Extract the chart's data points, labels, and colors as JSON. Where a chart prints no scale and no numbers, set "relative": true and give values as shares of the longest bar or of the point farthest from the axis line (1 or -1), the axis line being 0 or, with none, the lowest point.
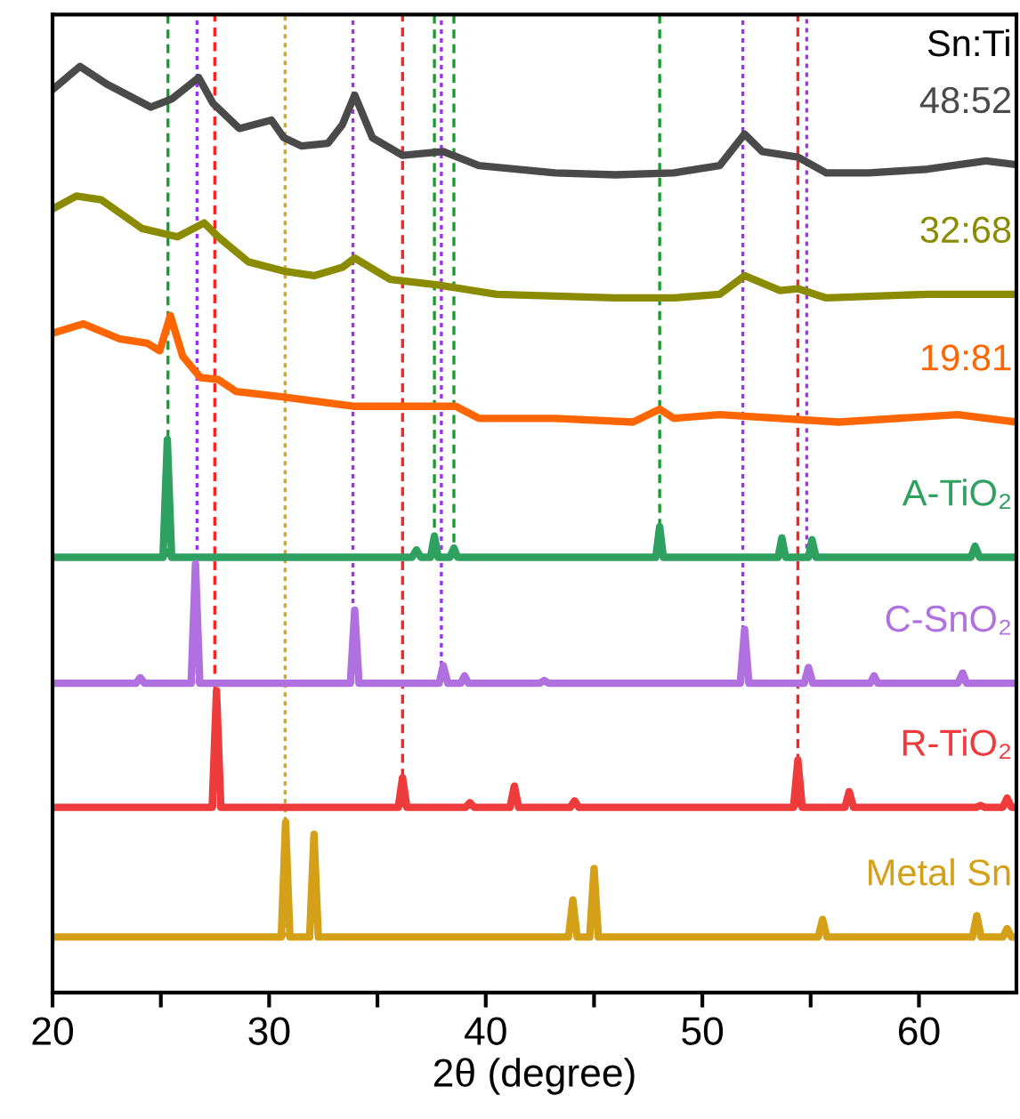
{
  "chart_data": {
    "type": "line",
    "relative": true,
    "xlabel": "2θ (degree)",
    "annotations": [
      "Sn:Ti"
    ],
    "xlim": [
      20,
      64.5
    ],
    "xticks": [
      20,
      {
        "value": 25,
        "label": null
      },
      30,
      {
        "value": 35,
        "label": null
      },
      40,
      {
        "value": 45,
        "label": null
      },
      50,
      {
        "value": 55,
        "label": null
      },
      60
    ],
    "tick_labels": "x",
    "grid": false,
    "legend": false,
    "line_style": "solid",
    "marker": "none",
    "series": [
      {
        "name": "48:52",
        "color": "#4a4a4a",
        "x": [
          20.0,
          21.27,
          22.5,
          24.54,
          25.52,
          26.75,
          27.41,
          28.63,
          30.11,
          30.68,
          31.5,
          32.72,
          33.38,
          33.95,
          34.77,
          36.16,
          38.04,
          39.68,
          43.2,
          45.98,
          48.68,
          50.8,
          51.95,
          52.77,
          54.41,
          55.72,
          57.68,
          60.38,
          63.09,
          64.48
        ],
        "values": [
          0.975,
          1.0,
          0.981,
          0.956,
          0.965,
          0.988,
          0.96,
          0.933,
          0.942,
          0.923,
          0.914,
          0.917,
          0.937,
          0.969,
          0.923,
          0.904,
          0.908,
          0.893,
          0.885,
          0.883,
          0.885,
          0.893,
          0.927,
          0.908,
          0.902,
          0.885,
          0.885,
          0.889,
          0.898,
          0.894
        ]
      },
      {
        "name": "32:68",
        "color": "#8b8b00",
        "x": [
          20.0,
          21.1,
          22.25,
          24.13,
          25.77,
          27.0,
          27.65,
          29.04,
          30.68,
          32.07,
          33.38,
          33.95,
          35.59,
          37.8,
          40.5,
          45.98,
          48.68,
          50.8,
          51.95,
          53.59,
          54.41,
          55.72,
          60.38,
          64.48
        ],
        "values": [
          0.846,
          0.86,
          0.856,
          0.825,
          0.816,
          0.831,
          0.816,
          0.789,
          0.779,
          0.774,
          0.783,
          0.793,
          0.77,
          0.764,
          0.754,
          0.75,
          0.75,
          0.754,
          0.774,
          0.758,
          0.76,
          0.75,
          0.754,
          0.754
        ]
      },
      {
        "name": "19:81",
        "color": "#ff6600",
        "x": [
          20.0,
          21.43,
          23.07,
          24.38,
          24.95,
          25.44,
          26.01,
          26.83,
          27.65,
          28.47,
          30.68,
          33.95,
          35.02,
          38.62,
          39.68,
          43.2,
          46.8,
          48.03,
          48.68,
          50.8,
          56.29,
          61.78,
          64.48
        ],
        "values": [
          0.712,
          0.722,
          0.706,
          0.701,
          0.693,
          0.731,
          0.687,
          0.664,
          0.662,
          0.649,
          0.643,
          0.633,
          0.633,
          0.633,
          0.62,
          0.62,
          0.616,
          0.63,
          0.62,
          0.624,
          0.616,
          0.624,
          0.616
        ]
      },
      {
        "name": "A-TiO₂",
        "color": "#2ea060",
        "x": [
          20,
          25.1,
          25.3,
          25.5,
          36.6,
          36.8,
          37.0,
          37.45,
          37.63,
          37.8,
          38.35,
          38.53,
          38.7,
          47.85,
          48.03,
          48.2,
          53.5,
          53.67,
          53.85,
          54.9,
          55.06,
          55.25,
          62.4,
          62.59,
          62.8,
          64.5
        ],
        "values": [
          0.47,
          0.47,
          0.597,
          0.47,
          0.47,
          0.478,
          0.47,
          0.47,
          0.493,
          0.47,
          0.47,
          0.48,
          0.47,
          0.47,
          0.503,
          0.47,
          0.47,
          0.491,
          0.47,
          0.47,
          0.489,
          0.47,
          0.47,
          0.482,
          0.47,
          0.47
        ]
      },
      {
        "name": "C-SnO₂",
        "color": "#b070e0",
        "x": [
          20,
          23.85,
          24.05,
          24.25,
          26.4,
          26.6,
          26.8,
          33.75,
          33.95,
          34.15,
          37.85,
          38.04,
          38.25,
          38.85,
          39.02,
          39.2,
          42.5,
          42.7,
          42.9,
          51.75,
          51.95,
          52.15,
          54.7,
          54.9,
          55.1,
          57.75,
          57.93,
          58.1,
          61.8,
          62.02,
          62.2,
          64.5
        ],
        "values": [
          0.334,
          0.334,
          0.34,
          0.334,
          0.334,
          0.463,
          0.334,
          0.334,
          0.413,
          0.334,
          0.334,
          0.353,
          0.334,
          0.334,
          0.342,
          0.334,
          0.334,
          0.337,
          0.334,
          0.334,
          0.392,
          0.334,
          0.334,
          0.351,
          0.334,
          0.334,
          0.342,
          0.334,
          0.334,
          0.345,
          0.334,
          0.334
        ]
      },
      {
        "name": "R-TiO₂",
        "color": "#ee3b3b",
        "x": [
          20,
          27.37,
          27.57,
          27.77,
          35.96,
          36.16,
          36.36,
          39.07,
          39.27,
          39.47,
          41.12,
          41.32,
          41.52,
          43.9,
          44.1,
          44.3,
          54.21,
          54.41,
          54.61,
          56.58,
          56.78,
          56.98,
          62.64,
          62.84,
          63.04,
          63.87,
          64.07,
          64.27,
          64.5
        ],
        "values": [
          0.2,
          0.2,
          0.326,
          0.2,
          0.2,
          0.232,
          0.2,
          0.2,
          0.205,
          0.2,
          0.2,
          0.223,
          0.2,
          0.2,
          0.207,
          0.2,
          0.2,
          0.251,
          0.2,
          0.2,
          0.217,
          0.2,
          0.2,
          0.202,
          0.2,
          0.2,
          0.21,
          0.2,
          0.2
        ]
      },
      {
        "name": "Metal Sn",
        "color": "#d4a017",
        "x": [
          20,
          30.56,
          30.76,
          30.96,
          31.87,
          32.07,
          32.27,
          43.82,
          44.02,
          44.22,
          44.8,
          45.0,
          45.2,
          55.35,
          55.55,
          55.75,
          62.47,
          62.67,
          62.87,
          63.87,
          64.07,
          64.27,
          64.5
        ],
        "values": [
          0.06,
          0.06,
          0.184,
          0.06,
          0.06,
          0.171,
          0.06,
          0.06,
          0.1,
          0.06,
          0.06,
          0.134,
          0.06,
          0.06,
          0.079,
          0.06,
          0.06,
          0.083,
          0.06,
          0.06,
          0.069,
          0.06,
          0.06
        ]
      }
    ],
    "ref_lines": [
      {
        "axis": "x",
        "value": 26.67,
        "color": "#9b30ff",
        "line_style": "dotted"
      },
      {
        "axis": "x",
        "value": 33.87,
        "color": "#9b30ff",
        "line_style": "dotted"
      },
      {
        "axis": "x",
        "value": 37.95,
        "color": "#9b30ff",
        "line_style": "dotted"
      },
      {
        "axis": "x",
        "value": 51.87,
        "color": "#9b30ff",
        "line_style": "dotted"
      },
      {
        "axis": "x",
        "value": 54.82,
        "color": "#9b30ff",
        "line_style": "dotted"
      },
      {
        "axis": "x",
        "value": 27.49,
        "color": "#ff2020",
        "line_style": "dashed"
      },
      {
        "axis": "x",
        "value": 36.16,
        "color": "#ff2020",
        "line_style": "dashed"
      },
      {
        "axis": "x",
        "value": 54.41,
        "color": "#ff2020",
        "line_style": "dashed"
      },
      {
        "axis": "x",
        "value": 30.74,
        "color": "#e0a020",
        "line_style": "dotted"
      },
      {
        "axis": "x",
        "value": 25.33,
        "color": "#1a9a30",
        "line_style": "dashed"
      },
      {
        "axis": "x",
        "value": 37.63,
        "color": "#1a9a30",
        "line_style": "dashed"
      },
      {
        "axis": "x",
        "value": 38.53,
        "color": "#1a9a30",
        "line_style": "dashed"
      },
      {
        "axis": "x",
        "value": 48.03,
        "color": "#1a9a30",
        "line_style": "dashed"
      }
    ]
  }
}
